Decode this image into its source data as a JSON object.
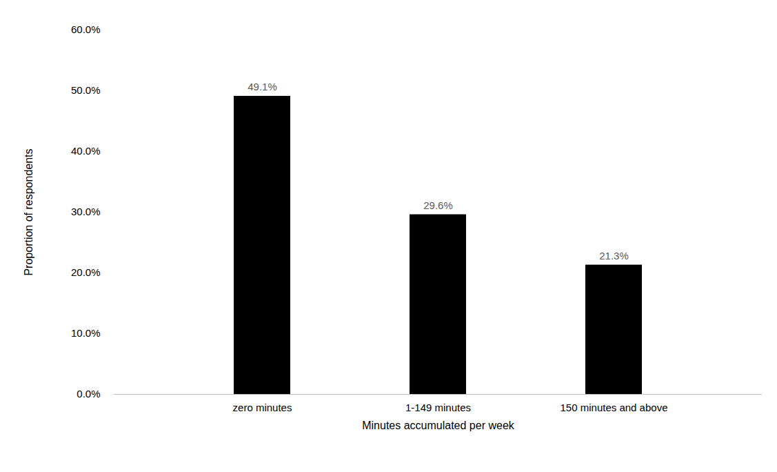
{
  "chart_data": {
    "type": "bar",
    "xlabel": "Minutes accumulated per week",
    "ylabel": "Proportion of respondents",
    "categories": [
      "zero minutes",
      "1-149 minutes",
      "150 minutes and above"
    ],
    "values": [
      49.1,
      29.6,
      21.3
    ],
    "value_labels": [
      "49.1%",
      "29.6%",
      "21.3%"
    ],
    "color": "#000000",
    "ylim": [
      0,
      60
    ],
    "yticks": [
      {
        "value": 0,
        "label": "0.0%"
      },
      {
        "value": 10,
        "label": "10.0%"
      },
      {
        "value": 20,
        "label": "20.0%"
      },
      {
        "value": 30,
        "label": "30.0%"
      },
      {
        "value": 40,
        "label": "40.0%"
      },
      {
        "value": 50,
        "label": "50.0%"
      },
      {
        "value": 60,
        "label": "60.0%"
      }
    ],
    "data_labels": true,
    "grid": false
  }
}
